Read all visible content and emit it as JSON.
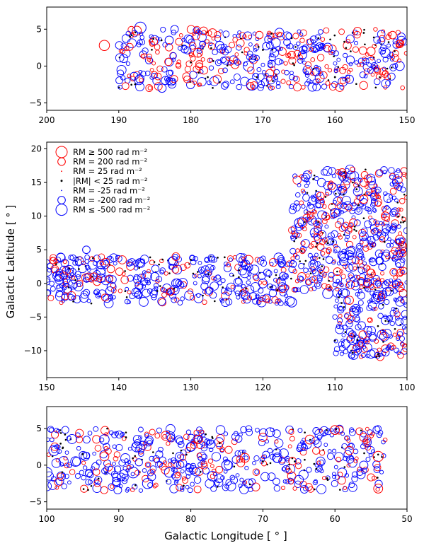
{
  "figure": {
    "ylabel": "Galactic Latitude [ ° ]",
    "xlabel": "Galactic Longitude [ ° ]"
  },
  "legend": [
    {
      "label": "RM  ≥  500 rad m⁻²",
      "sign": "positive",
      "rm": 500
    },
    {
      "label": "RM  =  200  rad m⁻²",
      "sign": "positive",
      "rm": 200
    },
    {
      "label": "RM  =  25   rad m⁻²",
      "sign": "positive",
      "rm": 25
    },
    {
      "label": "|RM| <  25   rad m⁻²",
      "sign": "zero",
      "rm": 0
    },
    {
      "label": "RM  = -25   rad m⁻²",
      "sign": "negative",
      "rm": -25
    },
    {
      "label": "RM  = -200  rad m⁻²",
      "sign": "negative",
      "rm": -200
    },
    {
      "label": "RM  ≤ -500 rad m⁻²",
      "sign": "negative",
      "rm": -500
    }
  ],
  "colors": {
    "positive": "#ff0000",
    "negative": "#0000ff",
    "zero": "#000000"
  },
  "chart_data": [
    {
      "type": "scatter",
      "panel": "top",
      "xlim": [
        200,
        150
      ],
      "ylim": [
        -6,
        8
      ],
      "xticks": [
        "200",
        "190",
        "180",
        "170",
        "160",
        "150"
      ],
      "yticks": [
        "−5",
        "0",
        "5"
      ],
      "point_fill_region": {
        "l": [
          190,
          150
        ],
        "b": [
          -3,
          5
        ]
      },
      "series": [
        {
          "sign": "positive",
          "points": [
            [
              192,
              2.8,
              400
            ],
            [
              187.5,
              4.8,
              300
            ],
            [
              179,
              1.8,
              300
            ],
            [
              177,
              4.5,
              250
            ],
            [
              170.5,
              4.2,
              200
            ],
            [
              166,
              1.5,
              200
            ],
            [
              155,
              2.0,
              250
            ],
            [
              152,
              4.2,
              200
            ],
            [
              151,
              3.0,
              200
            ]
          ]
        },
        {
          "sign": "negative",
          "points": [
            [
              187,
              5.2,
              500
            ],
            [
              183,
              3.5,
              250
            ],
            [
              171.5,
              -2.5,
              500
            ],
            [
              172,
              0.0,
              400
            ],
            [
              164.5,
              1.5,
              250
            ],
            [
              161,
              2.5,
              300
            ],
            [
              153,
              1.8,
              350
            ],
            [
              151,
              0.0,
              300
            ],
            [
              184,
              -3.0,
              250
            ],
            [
              176,
              2.8,
              250
            ],
            [
              158,
              -1.8,
              250
            ]
          ]
        },
        {
          "sign": "zero",
          "points": [
            [
              180,
              0.5,
              0
            ],
            [
              170,
              2.2,
              0
            ],
            [
              160,
              -1.5,
              0
            ],
            [
              156,
              4.5,
              0
            ],
            [
              176,
              -2.2,
              0
            ],
            [
              166,
              3.8,
              0
            ]
          ]
        }
      ]
    },
    {
      "type": "scatter",
      "panel": "middle",
      "xlim": [
        150,
        100
      ],
      "ylim": [
        -14,
        21
      ],
      "xticks": [
        "150",
        "140",
        "130",
        "120",
        "110",
        "100"
      ],
      "yticks": [
        "−10",
        "−5",
        "0",
        "5",
        "10",
        "15",
        "20"
      ],
      "point_fill_region": {
        "l": [
          150,
          100
        ],
        "b": [
          -3,
          4
        ],
        "extension": {
          "l": [
            116,
            100
          ],
          "b": [
            -12,
            17
          ]
        }
      },
      "series": [
        {
          "sign": "positive",
          "points": [
            [
              122,
              3.5,
              300
            ],
            [
              114.5,
              9.0,
              300
            ],
            [
              106,
              12.5,
              250
            ],
            [
              103,
              10.0,
              250
            ],
            [
              101,
              6.5,
              300
            ],
            [
              108,
              -2.5,
              250
            ],
            [
              105,
              1.5,
              250
            ],
            [
              112,
              13.0,
              200
            ],
            [
              109,
              16.5,
              200
            ]
          ]
        },
        {
          "sign": "negative",
          "points": [
            [
              144.5,
              5.0,
              200
            ],
            [
              141,
              -0.5,
              300
            ],
            [
              128,
              2.0,
              250
            ],
            [
              120,
              0.0,
              300
            ],
            [
              115,
              9.0,
              300
            ],
            [
              113,
              2.8,
              300
            ],
            [
              111,
              -1.5,
              400
            ],
            [
              110,
              10.5,
              300
            ],
            [
              108,
              4.2,
              300
            ],
            [
              106,
              7.0,
              300
            ],
            [
              104,
              -2.0,
              350
            ],
            [
              103,
              -5.5,
              250
            ],
            [
              101,
              3.0,
              300
            ],
            [
              108.5,
              -9.0,
              250
            ],
            [
              105,
              -10.5,
              250
            ],
            [
              116,
              -2.8,
              350
            ],
            [
              135,
              1.0,
              250
            ]
          ]
        },
        {
          "sign": "zero",
          "points": [
            [
              130,
              3.5,
              0
            ],
            [
              118,
              -1.0,
              0
            ],
            [
              113,
              15.5,
              0
            ],
            [
              107,
              14.0,
              0
            ],
            [
              110,
              -8.5,
              0
            ],
            [
              104,
              -10.5,
              0
            ],
            [
              111,
              6.0,
              0
            ],
            [
              146,
              0.5,
              0
            ]
          ]
        }
      ]
    },
    {
      "type": "scatter",
      "panel": "bottom",
      "xlim": [
        100,
        50
      ],
      "ylim": [
        -6,
        8
      ],
      "xticks": [
        "100",
        "90",
        "80",
        "70",
        "60",
        "50"
      ],
      "yticks": [
        "−5",
        "0",
        "5"
      ],
      "point_fill_region": {
        "l": [
          100,
          53
        ],
        "b": [
          -3.5,
          5
        ]
      },
      "series": [
        {
          "sign": "positive",
          "points": [
            [
              92,
              1.2,
              300
            ],
            [
              83.5,
              4.0,
              300
            ],
            [
              79,
              3.5,
              250
            ],
            [
              72.5,
              1.0,
              300
            ],
            [
              70,
              3.8,
              250
            ],
            [
              63.5,
              3.5,
              300
            ],
            [
              60,
              4.8,
              300
            ],
            [
              58,
              2.0,
              250
            ],
            [
              54,
              1.2,
              400
            ],
            [
              54,
              -3.2,
              300
            ],
            [
              56,
              3.8,
              250
            ],
            [
              66,
              -1.5,
              250
            ]
          ]
        },
        {
          "sign": "negative",
          "points": [
            [
              99,
              2.0,
              400
            ],
            [
              96,
              0.5,
              350
            ],
            [
              92,
              3.5,
              350
            ],
            [
              88,
              -1.0,
              450
            ],
            [
              86,
              -2.5,
              400
            ],
            [
              83,
              -1.0,
              350
            ],
            [
              80,
              2.5,
              300
            ],
            [
              77,
              -1.5,
              350
            ],
            [
              75,
              0.0,
              400
            ],
            [
              72,
              -2.5,
              300
            ],
            [
              68,
              1.0,
              350
            ],
            [
              65,
              -2.0,
              300
            ],
            [
              62,
              0.5,
              300
            ],
            [
              59,
              -1.0,
              300
            ],
            [
              56,
              0.0,
              250
            ],
            [
              69,
              4.5,
              300
            ],
            [
              87.5,
              2.5,
              400
            ]
          ]
        },
        {
          "sign": "zero",
          "points": [
            [
              95,
              1.5,
              0
            ],
            [
              81,
              -2.8,
              0
            ],
            [
              70,
              0.5,
              0
            ],
            [
              61,
              -2.0,
              0
            ],
            [
              76,
              3.0,
              0
            ],
            [
              89,
              3.8,
              0
            ]
          ]
        }
      ]
    }
  ]
}
